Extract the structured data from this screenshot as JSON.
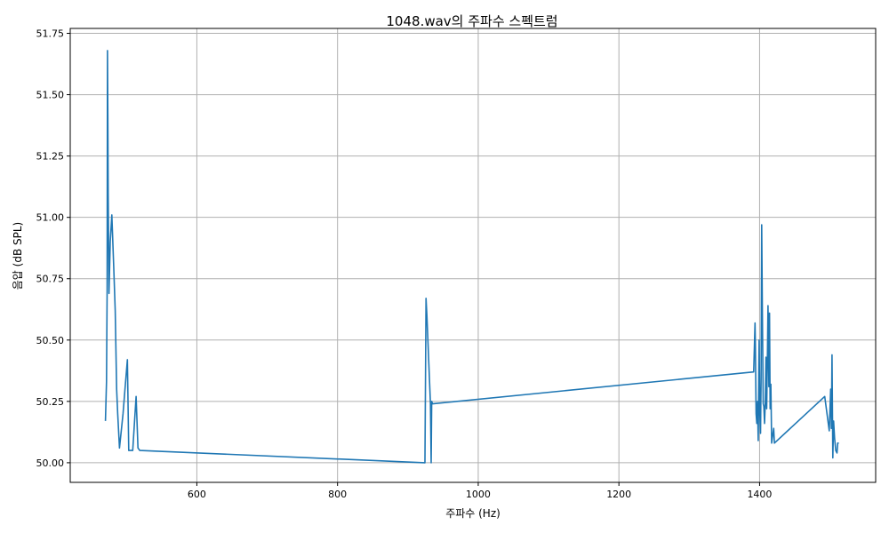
{
  "chart_data": {
    "type": "line",
    "title": "1048.wav의 주파수 스펙트럼",
    "xlabel": "주파수 (Hz)",
    "ylabel": "음압 (dB SPL)",
    "xlim": [
      420,
      1565
    ],
    "ylim": [
      49.92,
      51.77
    ],
    "x_ticks": [
      600,
      800,
      1000,
      1200,
      1400
    ],
    "x_tick_labels": [
      "600",
      "800",
      "1000",
      "1200",
      "1400"
    ],
    "y_ticks": [
      50.0,
      50.25,
      50.5,
      50.75,
      51.0,
      51.25,
      51.5,
      51.75
    ],
    "y_tick_labels": [
      "50.00",
      "50.25",
      "50.50",
      "50.75",
      "51.00",
      "51.25",
      "51.50",
      "51.75"
    ],
    "grid": true,
    "line_color": "#1f77b4",
    "series": [
      {
        "x": [
          470.1,
          471.6,
          472.4,
          472.9,
          473.4,
          474.0,
          475.1,
          476.9,
          479.2,
          481.8,
          483.9,
          486.0,
          487.5,
          490.0,
          495.1,
          497.9,
          501.2,
          503.2,
          505.3,
          508.8,
          513.7,
          516.3,
          519.0,
          924.3,
          925.8,
          927.0,
          932.1,
          933.1,
          933.8,
          935.1,
          1391.6,
          1393.5,
          1394.0,
          1395.0,
          1396.0,
          1397.0,
          1398.0,
          1399.3,
          1400.3,
          1401.4,
          1402.1,
          1403.0,
          1404.0,
          1405.1,
          1406.0,
          1407.0,
          1408.1,
          1409.1,
          1410.0,
          1411.1,
          1412.0,
          1413.2,
          1414.1,
          1415.0,
          1416.0,
          1417.1,
          1418.0,
          1419.0,
          1420.1,
          1421.1,
          1492.6,
          1499.0,
          1501.0,
          1502.1,
          1503.0,
          1504.1,
          1505.2,
          1506.6,
          1508.3,
          1510.0,
          1511.0,
          1512.5
        ],
        "y": [
          50.17,
          50.33,
          50.7,
          51.68,
          51.42,
          51.1,
          50.69,
          50.9,
          51.01,
          50.8,
          50.62,
          50.3,
          50.2,
          50.06,
          50.2,
          50.3,
          50.42,
          50.05,
          50.05,
          50.05,
          50.27,
          50.06,
          50.05,
          50.0,
          50.67,
          50.6,
          50.24,
          50.0,
          50.25,
          50.24,
          50.37,
          50.57,
          50.48,
          50.2,
          50.16,
          50.25,
          50.09,
          50.5,
          50.2,
          50.12,
          50.33,
          50.97,
          50.6,
          50.24,
          50.23,
          50.16,
          50.25,
          50.43,
          50.22,
          50.42,
          50.64,
          50.31,
          50.61,
          50.22,
          50.32,
          50.08,
          50.1,
          50.12,
          50.14,
          50.08,
          50.27,
          50.13,
          50.3,
          50.14,
          50.44,
          50.02,
          50.17,
          50.1,
          50.05,
          50.04,
          50.08,
          50.08
        ]
      }
    ]
  }
}
